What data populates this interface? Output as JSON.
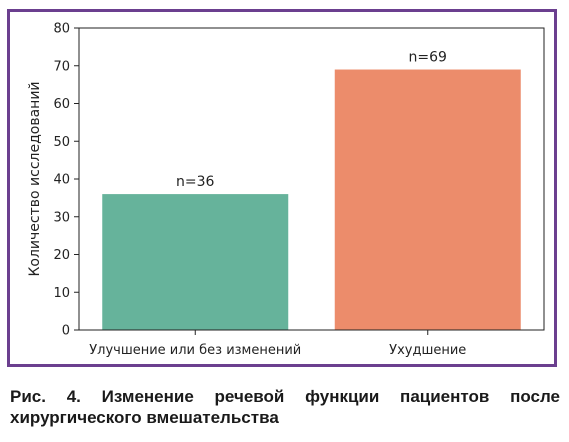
{
  "chart_data": {
    "type": "bar",
    "categories": [
      "Улучшение или без изменений",
      "Ухудшение"
    ],
    "values": [
      36,
      69
    ],
    "data_labels": [
      "n=36",
      "n=69"
    ],
    "bar_colors": [
      "#66b39b",
      "#ec8c6b"
    ],
    "title": "",
    "xlabel": "",
    "ylabel": "Количество исследований",
    "ylim": [
      0,
      80
    ],
    "yticks": [
      0,
      10,
      20,
      30,
      40,
      50,
      60,
      70,
      80
    ],
    "grid": false,
    "legend": "none"
  },
  "frame_color": "#6b3f8f",
  "caption": "Рис. 4. Изменение речевой функции пациентов после хирургического вмешательства"
}
